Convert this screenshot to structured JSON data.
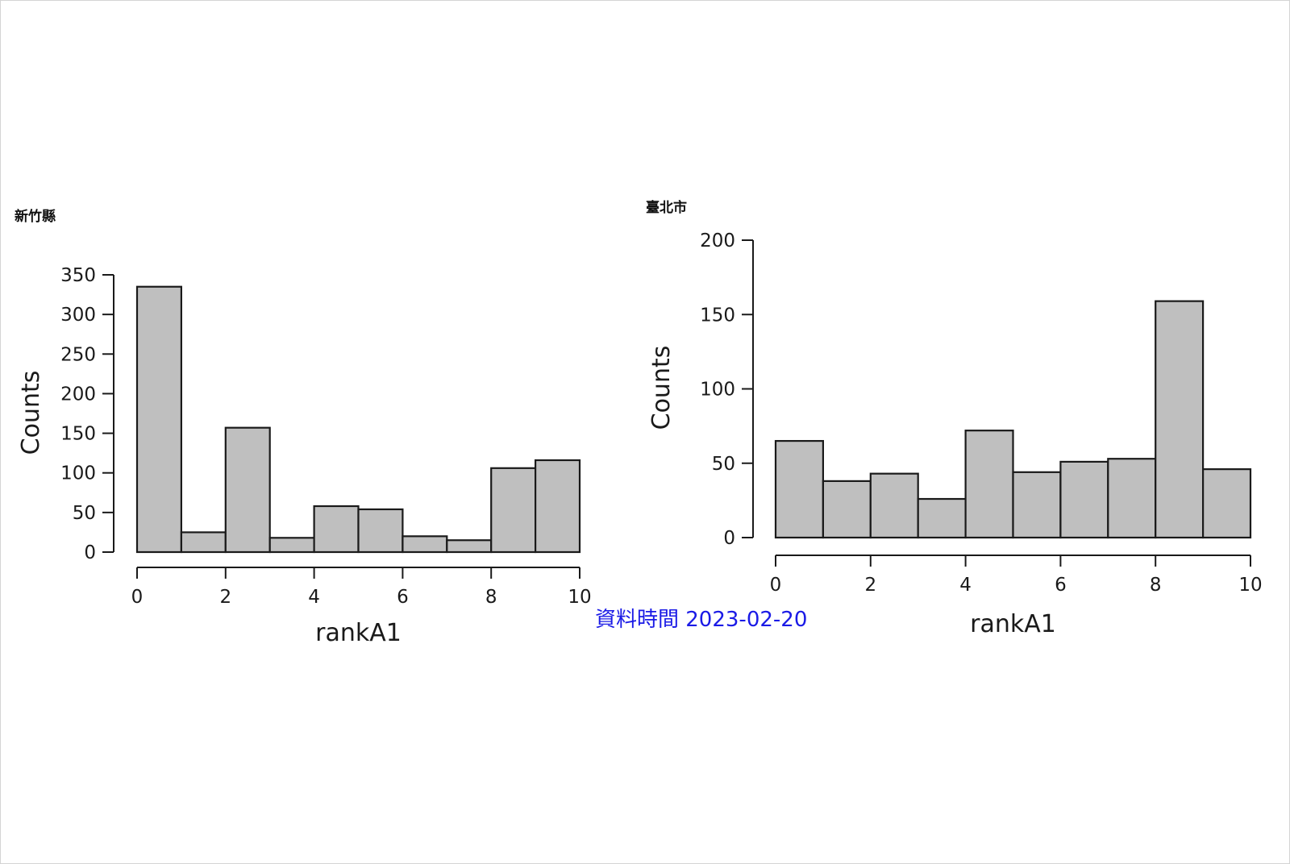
{
  "chart_data": [
    {
      "type": "bar",
      "title": "新竹縣",
      "xlabel": "rankA1",
      "ylabel": "Counts",
      "bin_edges": [
        0,
        1,
        2,
        3,
        4,
        5,
        6,
        7,
        8,
        9,
        10
      ],
      "values": [
        335,
        25,
        157,
        18,
        58,
        54,
        20,
        15,
        106,
        116
      ],
      "xlim": [
        0,
        10
      ],
      "ylim": [
        0,
        350
      ],
      "x_ticks": [
        "0",
        "2",
        "4",
        "6",
        "8",
        "10"
      ],
      "y_ticks": [
        "0",
        "50",
        "100",
        "150",
        "200",
        "250",
        "300",
        "350"
      ],
      "bar_color": "#bfbfbf",
      "grid": false
    },
    {
      "type": "bar",
      "title": "臺北市",
      "xlabel": "rankA1",
      "ylabel": "Counts",
      "bin_edges": [
        0,
        1,
        2,
        3,
        4,
        5,
        6,
        7,
        8,
        9,
        10
      ],
      "values": [
        65,
        38,
        43,
        26,
        72,
        44,
        51,
        53,
        159,
        46
      ],
      "xlim": [
        0,
        10
      ],
      "ylim": [
        0,
        200
      ],
      "x_ticks": [
        "0",
        "2",
        "4",
        "6",
        "8",
        "10"
      ],
      "y_ticks": [
        "0",
        "50",
        "100",
        "150",
        "200"
      ],
      "bar_color": "#bfbfbf",
      "grid": false
    }
  ],
  "footer": {
    "date_text": "資料時間 2023-02-20",
    "date_color": "#1a1ae6"
  }
}
